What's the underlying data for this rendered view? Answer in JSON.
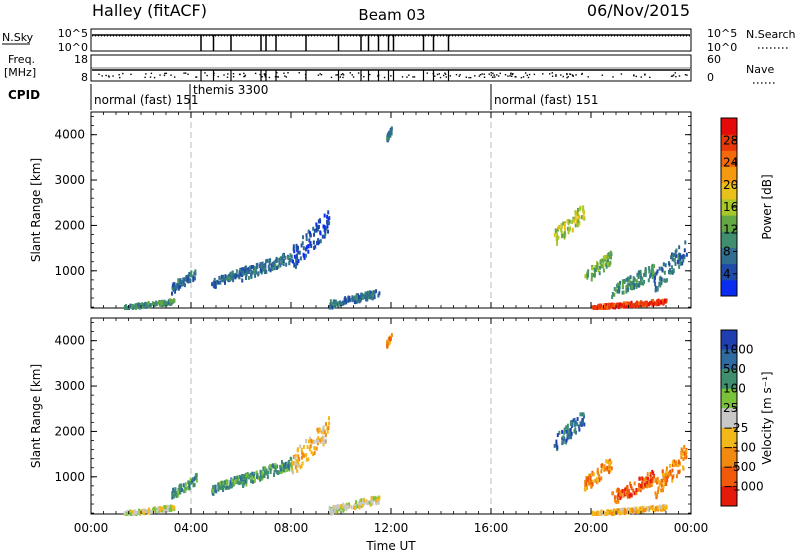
{
  "header": {
    "station": "Halley (fitACF)",
    "beam": "Beam 03",
    "date": "06/Nov/2015"
  },
  "info_panels": {
    "nsky_label": "N.Sky",
    "nsky_ticks": [
      "10^5",
      "10^0"
    ],
    "nsearch_label": "N.Search",
    "nsearch_ticks": [
      "10^5",
      "10^0"
    ],
    "freq_label_1": "Freq.",
    "freq_label_2": "[MHz]",
    "freq_ticks": [
      "18",
      "8"
    ],
    "nave_label": "Nave",
    "nave_ticks": [
      "60",
      "0"
    ],
    "cpid_label": "CPID",
    "cpid_segments": [
      {
        "text": "normal (fast) 151",
        "start_hour": 0
      },
      {
        "text": "themis 3300",
        "start_hour": 4
      },
      {
        "text": "normal (fast) 151",
        "start_hour": 16
      }
    ]
  },
  "chart_data": [
    {
      "type": "heatmap",
      "title": "",
      "ylabel": "Slant Range [km]",
      "xlabel": "",
      "xlim": [
        0,
        24
      ],
      "ylim": [
        180,
        4500
      ],
      "yticks": [
        "1000",
        "2000",
        "3000",
        "4000"
      ],
      "xticks": [
        "00:00",
        "04:00",
        "08:00",
        "12:00",
        "16:00",
        "20:00",
        "00:00"
      ],
      "colorbar": {
        "label": "Power [dB]",
        "ticks": [
          "4",
          "8",
          "12",
          "16",
          "20",
          "24",
          "28"
        ],
        "colors": [
          "#0a2cf0",
          "#1f4aa8",
          "#2f6e8e",
          "#3f8f6e",
          "#63a843",
          "#a8c82a",
          "#e8c21a",
          "#f59a0e",
          "#f46a0a",
          "#e83a08",
          "#e50a0a"
        ]
      },
      "vertical_markers": [
        4,
        16
      ],
      "scatter_regions": [
        {
          "t0": 1.3,
          "t1": 3.3,
          "r0": 180,
          "r1": 320,
          "level": 3
        },
        {
          "t0": 3.2,
          "t1": 4.2,
          "r0": 600,
          "r1": 950,
          "level": 2
        },
        {
          "t0": 4.8,
          "t1": 6.2,
          "r0": 700,
          "r1": 1000,
          "level": 2
        },
        {
          "t0": 6.0,
          "t1": 8.0,
          "r0": 900,
          "r1": 1300,
          "level": 2
        },
        {
          "t0": 8.0,
          "t1": 9.5,
          "r0": 1250,
          "r1": 2100,
          "level": 1
        },
        {
          "t0": 9.5,
          "t1": 11.5,
          "r0": 250,
          "r1": 500,
          "level": 2
        },
        {
          "t0": 11.8,
          "t1": 12.0,
          "r0": 3900,
          "r1": 4100,
          "level": 2
        },
        {
          "t0": 18.5,
          "t1": 19.7,
          "r0": 1700,
          "r1": 2300,
          "level": 5
        },
        {
          "t0": 19.7,
          "t1": 20.8,
          "r0": 800,
          "r1": 1300,
          "level": 4
        },
        {
          "t0": 20.8,
          "t1": 22.5,
          "r0": 500,
          "r1": 1000,
          "level": 3
        },
        {
          "t0": 22.5,
          "t1": 23.8,
          "r0": 700,
          "r1": 1500,
          "level": 2
        },
        {
          "t0": 20.0,
          "t1": 23.0,
          "r0": 180,
          "r1": 320,
          "level": 9
        }
      ]
    },
    {
      "type": "heatmap",
      "title": "",
      "ylabel": "Slant Range [km]",
      "xlabel": "Time UT",
      "xlim": [
        0,
        24
      ],
      "ylim": [
        180,
        4500
      ],
      "yticks": [
        "1000",
        "2000",
        "3000",
        "4000"
      ],
      "xticks": [
        "00:00",
        "04:00",
        "08:00",
        "12:00",
        "16:00",
        "20:00",
        "00:00"
      ],
      "colorbar": {
        "label": "Velocity [m s⁻¹]",
        "ticks": [
          "1000",
          "500",
          "100",
          "25",
          "−25",
          "−100",
          "−500",
          "−1000"
        ],
        "colors": [
          "#1f3fb0",
          "#2f6aa0",
          "#3f8f6e",
          "#7ac23a",
          "#c8c8c8",
          "#f2b81a",
          "#f28a10",
          "#f05a0a",
          "#e51a0a"
        ]
      },
      "vertical_markers": [
        4,
        16
      ],
      "scatter_regions": [
        {
          "t0": 1.3,
          "t1": 3.3,
          "r0": 180,
          "r1": 320,
          "level": 4
        },
        {
          "t0": 3.2,
          "t1": 4.2,
          "r0": 600,
          "r1": 950,
          "level": 2
        },
        {
          "t0": 4.8,
          "t1": 6.2,
          "r0": 700,
          "r1": 1000,
          "level": 2
        },
        {
          "t0": 6.0,
          "t1": 8.0,
          "r0": 900,
          "r1": 1300,
          "level": 2
        },
        {
          "t0": 8.0,
          "t1": 9.5,
          "r0": 1250,
          "r1": 2100,
          "level": 5
        },
        {
          "t0": 9.5,
          "t1": 11.5,
          "r0": 250,
          "r1": 500,
          "level": 4
        },
        {
          "t0": 11.8,
          "t1": 12.0,
          "r0": 3900,
          "r1": 4100,
          "level": 6
        },
        {
          "t0": 18.5,
          "t1": 19.7,
          "r0": 1700,
          "r1": 2300,
          "level": 1
        },
        {
          "t0": 19.7,
          "t1": 20.8,
          "r0": 800,
          "r1": 1300,
          "level": 6
        },
        {
          "t0": 20.8,
          "t1": 22.5,
          "r0": 500,
          "r1": 1000,
          "level": 7
        },
        {
          "t0": 22.5,
          "t1": 23.8,
          "r0": 700,
          "r1": 1500,
          "level": 6
        },
        {
          "t0": 20.0,
          "t1": 23.0,
          "r0": 180,
          "r1": 320,
          "level": 5
        }
      ]
    }
  ]
}
